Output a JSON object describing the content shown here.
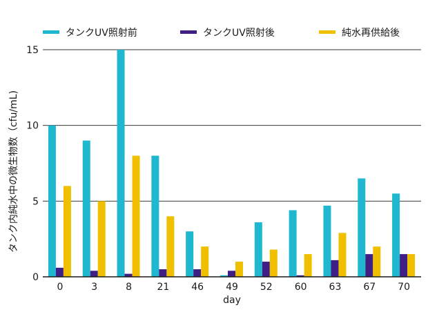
{
  "chart_data": {
    "type": "bar",
    "categories": [
      "0",
      "3",
      "8",
      "21",
      "46",
      "49",
      "52",
      "60",
      "63",
      "67",
      "70"
    ],
    "series": [
      {
        "name": "タンクUV照射前",
        "color": "#1fb8d0",
        "values": [
          10,
          9,
          15,
          8,
          3,
          0.1,
          3.6,
          4.4,
          4.7,
          6.5,
          5.5
        ]
      },
      {
        "name": "タンクUV照射後",
        "color": "#3f1f86",
        "values": [
          0.6,
          0.4,
          0.2,
          0.5,
          0.5,
          0.4,
          1.0,
          0.1,
          1.1,
          1.5,
          1.5
        ]
      },
      {
        "name": "純水再供給後",
        "color": "#f0c000",
        "values": [
          6,
          5,
          8,
          4,
          2,
          1,
          1.8,
          1.5,
          2.9,
          2,
          1.5
        ]
      }
    ],
    "xlabel": "day",
    "ylabel": "タンク内純水中の微生物数（cfu/mL)",
    "ylim": [
      0,
      15
    ],
    "yticks": [
      0,
      5,
      10,
      15
    ],
    "grid": true,
    "legend_position": "top"
  }
}
